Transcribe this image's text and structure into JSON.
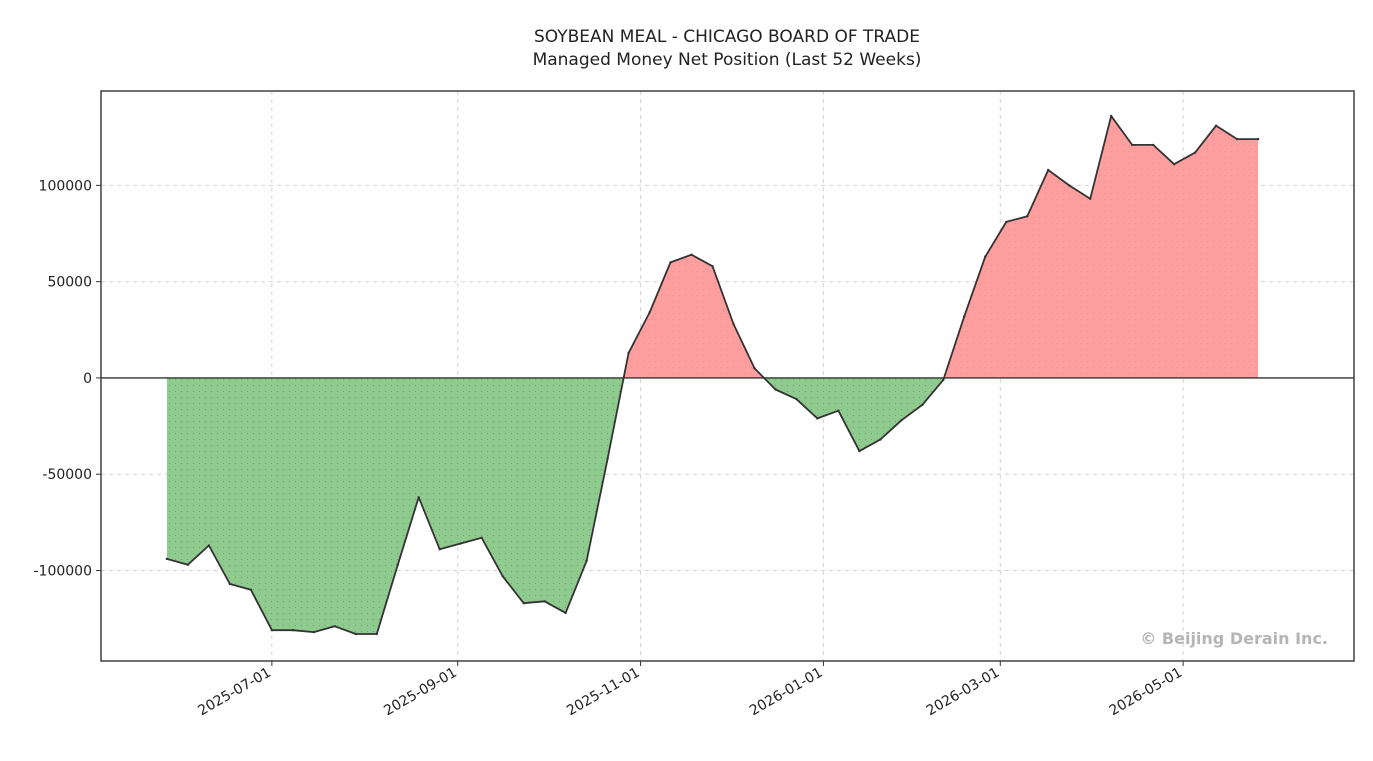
{
  "chart_data": {
    "type": "area",
    "title": "SOYBEAN MEAL - CHICAGO BOARD OF TRADE",
    "subtitle": "Managed Money Net Position (Last 52 Weeks)",
    "xlabel": "",
    "ylabel": "",
    "x_tick_labels": [
      "2025-07-01",
      "2025-09-01",
      "2025-11-01",
      "2026-01-01",
      "2026-03-01",
      "2026-05-01"
    ],
    "y_tick_values": [
      -100000,
      -50000,
      0,
      50000,
      100000
    ],
    "y_tick_labels": [
      "-100000",
      "-50000",
      "0",
      "50000",
      "100000"
    ],
    "xlim": [
      "2025-05-05",
      "2026-06-27"
    ],
    "ylim": [
      -147000,
      149000
    ],
    "grid": true,
    "positive_color": "#ff9e9e",
    "negative_color": "#8fcb8f",
    "line_color": "#333333",
    "watermark": "© Beijing Derain Inc.",
    "series": [
      {
        "x": [
          "2025-05-27",
          "2025-06-03",
          "2025-06-10",
          "2025-06-17",
          "2025-06-24",
          "2025-07-01",
          "2025-07-08",
          "2025-07-15",
          "2025-07-22",
          "2025-07-29",
          "2025-08-05",
          "2025-08-12",
          "2025-08-19",
          "2025-08-26",
          "2025-09-02",
          "2025-09-09",
          "2025-09-16",
          "2025-09-23",
          "2025-09-30",
          "2025-10-07",
          "2025-10-14",
          "2025-10-21",
          "2025-10-28",
          "2025-11-04",
          "2025-11-11",
          "2025-11-18",
          "2025-11-25",
          "2025-12-02",
          "2025-12-09",
          "2025-12-16",
          "2025-12-23",
          "2025-12-30",
          "2026-01-06",
          "2026-01-13",
          "2026-01-20",
          "2026-01-27",
          "2026-02-03",
          "2026-02-10",
          "2026-02-17",
          "2026-02-24",
          "2026-03-03",
          "2026-03-10",
          "2026-03-17",
          "2026-03-24",
          "2026-03-31",
          "2026-04-07",
          "2026-04-14",
          "2026-04-21",
          "2026-04-28",
          "2026-05-05",
          "2026-05-12",
          "2026-05-19",
          "2026-05-26"
        ],
        "values": [
          -94000,
          -97000,
          -87000,
          -107000,
          -110000,
          -131000,
          -131000,
          -132000,
          -129000,
          -133000,
          -133000,
          -97000,
          -62000,
          -89000,
          -86000,
          -83000,
          -103000,
          -117000,
          -116000,
          -122000,
          -95000,
          -42000,
          13000,
          34000,
          60000,
          64000,
          58000,
          28000,
          5000,
          -6000,
          -11000,
          -21000,
          -17000,
          -38000,
          -32000,
          -22000,
          -14000,
          -1000,
          32000,
          63000,
          81000,
          84000,
          108000,
          100000,
          93000,
          136000,
          121000,
          121000,
          111000,
          117000,
          131000,
          124000,
          124000
        ]
      }
    ]
  }
}
